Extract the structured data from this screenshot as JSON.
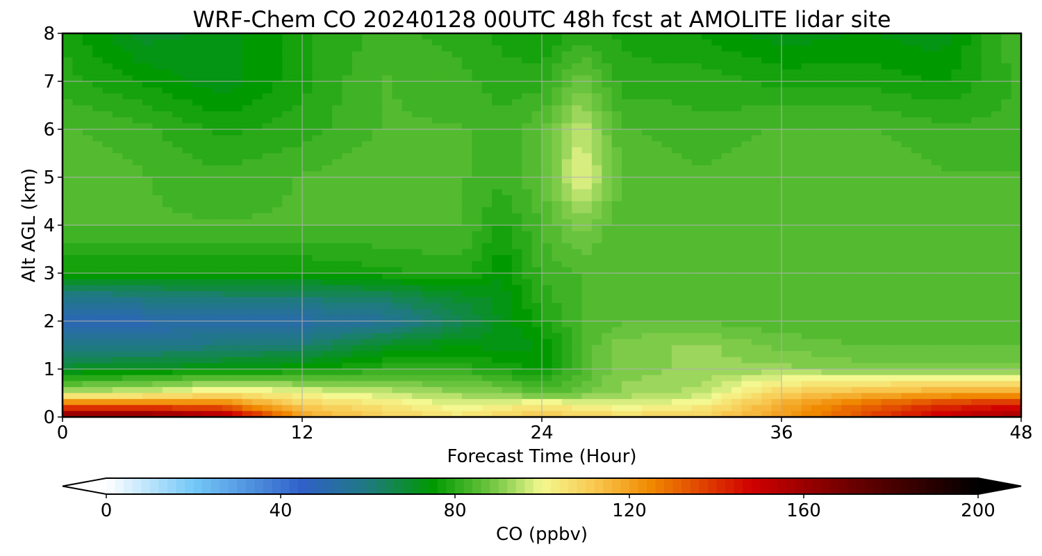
{
  "chart_data": {
    "type": "heatmap",
    "title": "WRF-Chem CO  20240128 00UTC 48h fcst at AMOLITE lidar site",
    "xlabel": "Forecast Time (Hour)",
    "ylabel": "Alt AGL (km)",
    "xlim": [
      0,
      48
    ],
    "ylim": [
      0,
      8
    ],
    "x_ticks": [
      "0",
      "12",
      "24",
      "36",
      "48"
    ],
    "x_tick_values": [
      0,
      12,
      24,
      36,
      48
    ],
    "y_ticks": [
      "0",
      "1",
      "2",
      "3",
      "4",
      "5",
      "6",
      "7",
      "8"
    ],
    "y_tick_values": [
      0,
      1,
      2,
      3,
      4,
      5,
      6,
      7,
      8
    ],
    "grid": true,
    "x": [
      0,
      4,
      8,
      12,
      16,
      20,
      22,
      24,
      26,
      28,
      32,
      36,
      40,
      44,
      48
    ],
    "y": [
      0,
      0.25,
      0.5,
      1,
      1.5,
      2,
      2.5,
      3,
      4,
      5,
      6,
      7,
      8
    ],
    "z": [
      [
        170,
        170,
        160,
        120,
        110,
        105,
        110,
        112,
        110,
        108,
        110,
        120,
        135,
        150,
        160
      ],
      [
        130,
        130,
        128,
        110,
        105,
        98,
        100,
        105,
        100,
        98,
        102,
        118,
        130,
        140,
        145
      ],
      [
        95,
        98,
        105,
        100,
        96,
        92,
        90,
        85,
        88,
        92,
        95,
        110,
        115,
        118,
        120
      ],
      [
        70,
        72,
        74,
        76,
        80,
        80,
        78,
        75,
        84,
        90,
        92,
        92,
        90,
        90,
        90
      ],
      [
        58,
        58,
        60,
        62,
        70,
        74,
        72,
        74,
        84,
        90,
        92,
        88,
        86,
        86,
        86
      ],
      [
        50,
        50,
        52,
        52,
        55,
        65,
        72,
        78,
        84,
        86,
        86,
        84,
        84,
        84,
        84
      ],
      [
        58,
        60,
        62,
        62,
        64,
        70,
        72,
        80,
        84,
        84,
        84,
        84,
        84,
        84,
        84
      ],
      [
        76,
        76,
        76,
        76,
        78,
        80,
        74,
        82,
        84,
        84,
        84,
        84,
        84,
        84,
        84
      ],
      [
        84,
        84,
        84,
        84,
        84,
        84,
        78,
        84,
        90,
        84,
        84,
        84,
        84,
        84,
        84
      ],
      [
        86,
        84,
        82,
        84,
        86,
        84,
        82,
        86,
        100,
        86,
        84,
        86,
        86,
        84,
        84
      ],
      [
        84,
        82,
        78,
        80,
        84,
        84,
        82,
        86,
        96,
        84,
        82,
        84,
        84,
        82,
        82
      ],
      [
        80,
        76,
        72,
        78,
        84,
        82,
        80,
        80,
        88,
        80,
        80,
        78,
        78,
        76,
        82
      ],
      [
        78,
        70,
        72,
        78,
        82,
        80,
        78,
        76,
        80,
        78,
        76,
        72,
        74,
        72,
        84
      ]
    ],
    "colorbar": {
      "label": "CO  (ppbv)",
      "ticks": [
        "0",
        "40",
        "80",
        "120",
        "160",
        "200"
      ],
      "tick_values": [
        0,
        40,
        80,
        120,
        160,
        200
      ],
      "range": [
        0,
        200
      ],
      "extend": "both",
      "orientation": "horizontal",
      "colors": [
        {
          "value": 0,
          "color": "#ffffff"
        },
        {
          "value": 20,
          "color": "#74c8f8"
        },
        {
          "value": 45,
          "color": "#3060c8"
        },
        {
          "value": 60,
          "color": "#1f7a80"
        },
        {
          "value": 75,
          "color": "#009a00"
        },
        {
          "value": 90,
          "color": "#7ecb4a"
        },
        {
          "value": 100,
          "color": "#f4f890"
        },
        {
          "value": 112,
          "color": "#f8c850"
        },
        {
          "value": 125,
          "color": "#f08800"
        },
        {
          "value": 148,
          "color": "#d00000"
        },
        {
          "value": 170,
          "color": "#700000"
        },
        {
          "value": 200,
          "color": "#000000"
        }
      ]
    }
  }
}
